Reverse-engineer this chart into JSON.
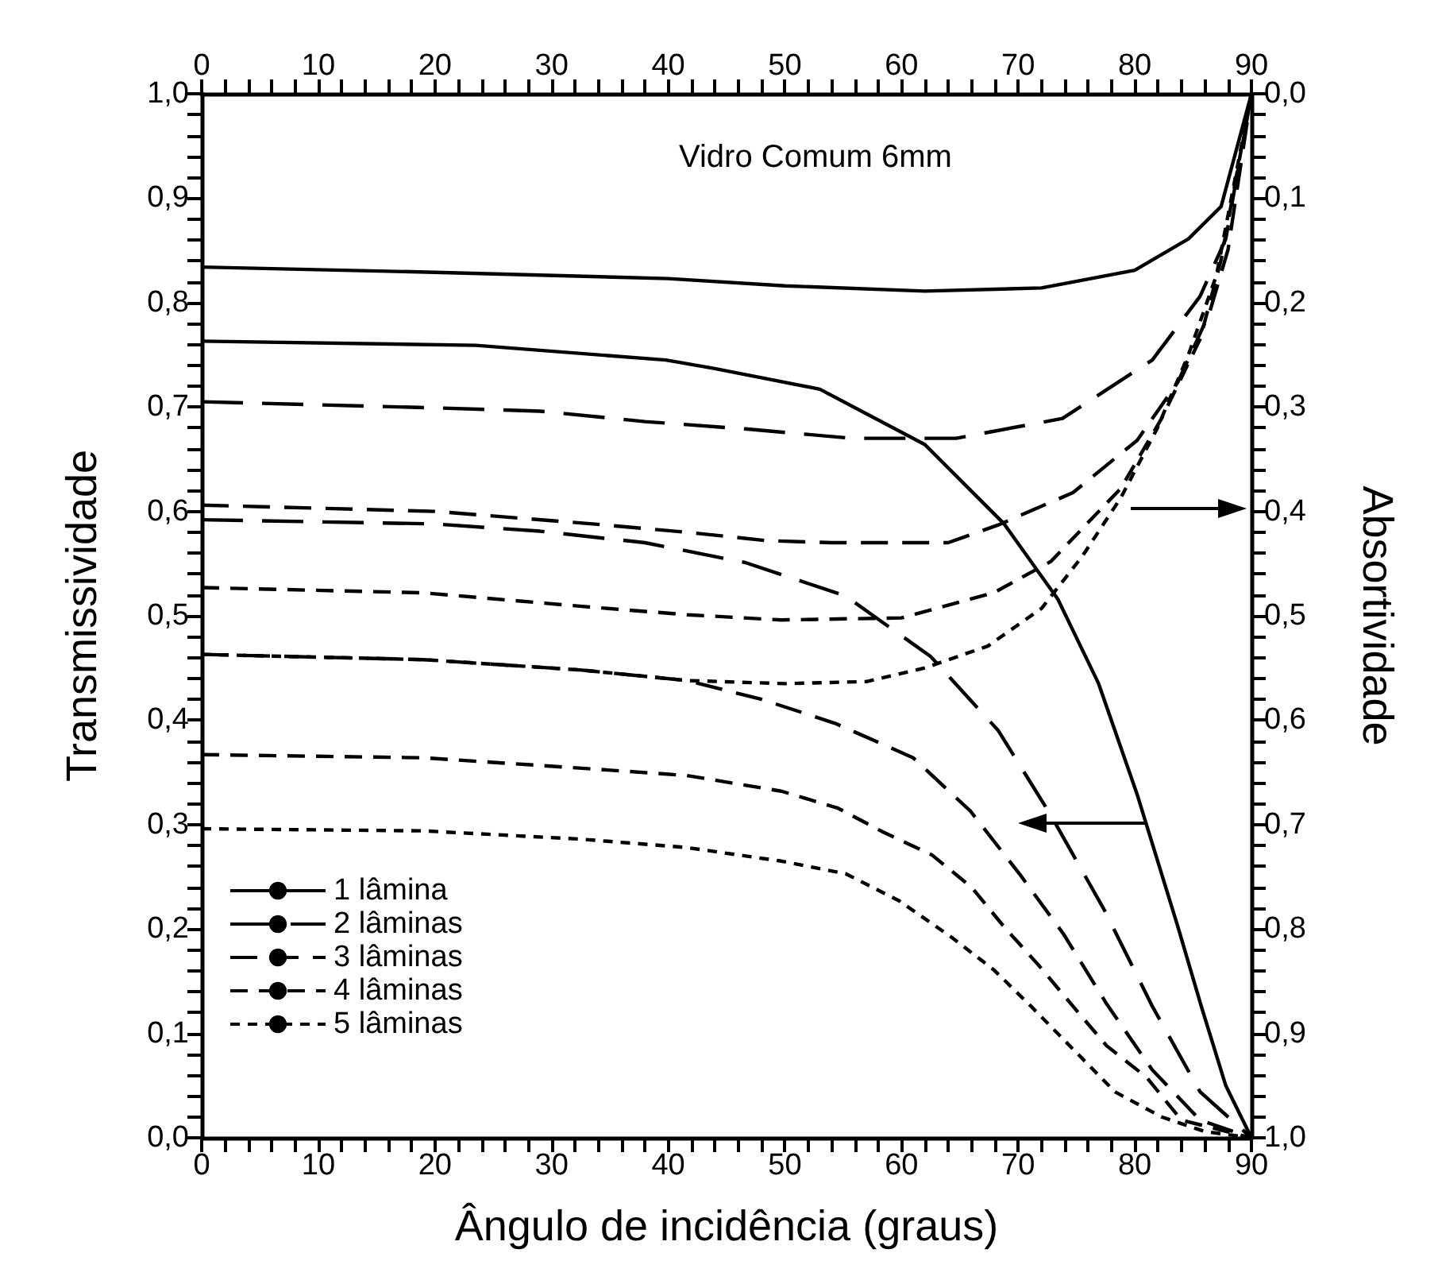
{
  "chart_data": {
    "type": "line",
    "annotations": [
      "Vidro Comum 6mm"
    ],
    "xlabel": "Ângulo de incidência (graus)",
    "ylabel": "Transmissividade",
    "y2label": "Absortividade",
    "series": [
      {
        "name": "1 lâmina",
        "color": "#000000",
        "line_style": "solid",
        "x": [
          0,
          23.5,
          39.8,
          43.9,
          53,
          62,
          68.8,
          73.4,
          76.9,
          80.2,
          83.7,
          85.7,
          87.8,
          90
        ],
        "values": [
          0.763,
          0.759,
          0.745,
          0.737,
          0.717,
          0.664,
          0.588,
          0.516,
          0.435,
          0.329,
          0.202,
          0.126,
          0.05,
          0
        ]
      },
      {
        "color": "#000000",
        "line_style": "solid",
        "axis": "y2",
        "x": [
          0,
          20,
          40,
          50,
          62,
          72,
          80,
          84.6,
          87.4,
          90
        ],
        "values": [
          0.166,
          0.171,
          0.177,
          0.184,
          0.189,
          0.186,
          0.169,
          0.139,
          0.108,
          0
        ]
      },
      {
        "name": "2 lâminas",
        "color": "#000000",
        "line_style": "dashed",
        "x": [
          0,
          20,
          29,
          38,
          46.6,
          55.2,
          62.5,
          68.3,
          72.8,
          77.4,
          81.5,
          85.6,
          90
        ],
        "values": [
          0.592,
          0.588,
          0.581,
          0.57,
          0.551,
          0.519,
          0.461,
          0.39,
          0.309,
          0.218,
          0.126,
          0.044,
          0
        ]
      },
      {
        "color": "#000000",
        "line_style": "dashed",
        "axis": "y2",
        "x": [
          0,
          20.4,
          29,
          38,
          46.6,
          55.7,
          64.7,
          73.8,
          81.5,
          85.6,
          87.8,
          90
        ],
        "values": [
          0.295,
          0.301,
          0.304,
          0.314,
          0.321,
          0.33,
          0.33,
          0.311,
          0.255,
          0.194,
          0.139,
          0
        ]
      },
      {
        "name": "3 lâminas",
        "color": "#000000",
        "line_style": "dashed",
        "x": [
          0,
          19,
          32.6,
          41.6,
          48,
          54.3,
          61,
          65.9,
          70.1,
          73.9,
          77.6,
          81.5,
          85.6,
          90
        ],
        "values": [
          0.463,
          0.458,
          0.448,
          0.438,
          0.42,
          0.397,
          0.364,
          0.313,
          0.253,
          0.195,
          0.128,
          0.065,
          0.017,
          0
        ]
      },
      {
        "color": "#000000",
        "line_style": "dashed",
        "axis": "y2",
        "x": [
          0,
          20,
          33.5,
          41.6,
          48.4,
          54,
          64,
          68.3,
          74.7,
          80.2,
          83.7,
          86.4,
          88,
          90
        ],
        "values": [
          0.394,
          0.4,
          0.412,
          0.42,
          0.428,
          0.43,
          0.43,
          0.413,
          0.382,
          0.332,
          0.276,
          0.21,
          0.149,
          0
        ]
      },
      {
        "name": "4 lâminas",
        "color": "#000000",
        "line_style": "dashed",
        "x": [
          0,
          19,
          32.6,
          41.6,
          49.7,
          54.5,
          58.4,
          62.6,
          66,
          68.8,
          71.7,
          74.7,
          77.6,
          81,
          84,
          90
        ],
        "values": [
          0.367,
          0.364,
          0.354,
          0.347,
          0.332,
          0.316,
          0.293,
          0.271,
          0.24,
          0.202,
          0.166,
          0.126,
          0.088,
          0.058,
          0.017,
          0
        ]
      },
      {
        "color": "#000000",
        "line_style": "dashed",
        "axis": "y2",
        "x": [
          0,
          19,
          32.6,
          41.6,
          49.7,
          60,
          67.9,
          72.8,
          78.8,
          82.3,
          85.6,
          87.4,
          90
        ],
        "values": [
          0.473,
          0.478,
          0.491,
          0.499,
          0.504,
          0.502,
          0.478,
          0.448,
          0.378,
          0.311,
          0.235,
          0.159,
          0
        ]
      },
      {
        "name": "5 lâminas",
        "color": "#000000",
        "line_style": "dashed",
        "x": [
          0,
          19,
          32.6,
          41.6,
          49.7,
          55.2,
          59.8,
          64.3,
          67.9,
          71.1,
          74.7,
          78.3,
          82.3,
          86,
          90
        ],
        "values": [
          0.296,
          0.294,
          0.286,
          0.278,
          0.265,
          0.253,
          0.227,
          0.192,
          0.161,
          0.126,
          0.085,
          0.044,
          0.02,
          0.006,
          0
        ]
      },
      {
        "color": "#000000",
        "line_style": "dashed",
        "axis": "y2",
        "x": [
          0,
          19,
          32.6,
          41.6,
          50,
          57,
          62,
          67.4,
          72,
          75.5,
          78.8,
          81.9,
          84.6,
          87,
          90
        ],
        "values": [
          0.537,
          0.542,
          0.552,
          0.562,
          0.565,
          0.563,
          0.55,
          0.529,
          0.493,
          0.443,
          0.387,
          0.321,
          0.25,
          0.174,
          0
        ]
      }
    ],
    "xlim": [
      0,
      90
    ],
    "xticks": [
      0,
      {
        "value": 2,
        "label": null
      },
      {
        "value": 4,
        "label": null
      },
      {
        "value": 6,
        "label": null
      },
      {
        "value": 8,
        "label": null
      },
      10,
      {
        "value": 12,
        "label": null
      },
      {
        "value": 14,
        "label": null
      },
      {
        "value": 16,
        "label": null
      },
      {
        "value": 18,
        "label": null
      },
      20,
      {
        "value": 22,
        "label": null
      },
      {
        "value": 24,
        "label": null
      },
      {
        "value": 26,
        "label": null
      },
      {
        "value": 28,
        "label": null
      },
      30,
      {
        "value": 32,
        "label": null
      },
      {
        "value": 34,
        "label": null
      },
      {
        "value": 36,
        "label": null
      },
      {
        "value": 38,
        "label": null
      },
      40,
      {
        "value": 42,
        "label": null
      },
      {
        "value": 44,
        "label": null
      },
      {
        "value": 46,
        "label": null
      },
      {
        "value": 48,
        "label": null
      },
      50,
      {
        "value": 52,
        "label": null
      },
      {
        "value": 54,
        "label": null
      },
      {
        "value": 56,
        "label": null
      },
      {
        "value": 58,
        "label": null
      },
      60,
      {
        "value": 62,
        "label": null
      },
      {
        "value": 64,
        "label": null
      },
      {
        "value": 66,
        "label": null
      },
      {
        "value": 68,
        "label": null
      },
      70,
      {
        "value": 72,
        "label": null
      },
      {
        "value": 74,
        "label": null
      },
      {
        "value": 76,
        "label": null
      },
      {
        "value": 78,
        "label": null
      },
      80,
      {
        "value": 82,
        "label": null
      },
      {
        "value": 84,
        "label": null
      },
      {
        "value": 86,
        "label": null
      },
      {
        "value": 88,
        "label": null
      },
      90
    ],
    "x2lim": [
      0,
      90
    ],
    "x2ticks": [
      0,
      {
        "value": 2,
        "label": null
      },
      {
        "value": 4,
        "label": null
      },
      {
        "value": 6,
        "label": null
      },
      {
        "value": 8,
        "label": null
      },
      10,
      {
        "value": 12,
        "label": null
      },
      {
        "value": 14,
        "label": null
      },
      {
        "value": 16,
        "label": null
      },
      {
        "value": 18,
        "label": null
      },
      20,
      {
        "value": 22,
        "label": null
      },
      {
        "value": 24,
        "label": null
      },
      {
        "value": 26,
        "label": null
      },
      {
        "value": 28,
        "label": null
      },
      30,
      {
        "value": 32,
        "label": null
      },
      {
        "value": 34,
        "label": null
      },
      {
        "value": 36,
        "label": null
      },
      {
        "value": 38,
        "label": null
      },
      40,
      {
        "value": 42,
        "label": null
      },
      {
        "value": 44,
        "label": null
      },
      {
        "value": 46,
        "label": null
      },
      {
        "value": 48,
        "label": null
      },
      50,
      {
        "value": 52,
        "label": null
      },
      {
        "value": 54,
        "label": null
      },
      {
        "value": 56,
        "label": null
      },
      {
        "value": 58,
        "label": null
      },
      60,
      {
        "value": 62,
        "label": null
      },
      {
        "value": 64,
        "label": null
      },
      {
        "value": 66,
        "label": null
      },
      {
        "value": 68,
        "label": null
      },
      70,
      {
        "value": 72,
        "label": null
      },
      {
        "value": 74,
        "label": null
      },
      {
        "value": 76,
        "label": null
      },
      {
        "value": 78,
        "label": null
      },
      80,
      {
        "value": 82,
        "label": null
      },
      {
        "value": 84,
        "label": null
      },
      {
        "value": 86,
        "label": null
      },
      {
        "value": 88,
        "label": null
      },
      90
    ],
    "ylim": [
      0,
      1
    ],
    "yticks": [
      {
        "value": 0,
        "label": "0,0"
      },
      {
        "value": 0.02,
        "label": null
      },
      {
        "value": 0.04,
        "label": null
      },
      {
        "value": 0.06,
        "label": null
      },
      {
        "value": 0.08,
        "label": null
      },
      {
        "value": 0.1,
        "label": "0,1"
      },
      {
        "value": 0.12,
        "label": null
      },
      {
        "value": 0.14,
        "label": null
      },
      {
        "value": 0.16,
        "label": null
      },
      {
        "value": 0.18,
        "label": null
      },
      {
        "value": 0.2,
        "label": "0,2"
      },
      {
        "value": 0.22,
        "label": null
      },
      {
        "value": 0.24,
        "label": null
      },
      {
        "value": 0.26,
        "label": null
      },
      {
        "value": 0.28,
        "label": null
      },
      {
        "value": 0.3,
        "label": "0,3"
      },
      {
        "value": 0.32,
        "label": null
      },
      {
        "value": 0.34,
        "label": null
      },
      {
        "value": 0.36,
        "label": null
      },
      {
        "value": 0.38,
        "label": null
      },
      {
        "value": 0.4,
        "label": "0,4"
      },
      {
        "value": 0.42,
        "label": null
      },
      {
        "value": 0.44,
        "label": null
      },
      {
        "value": 0.46,
        "label": null
      },
      {
        "value": 0.48,
        "label": null
      },
      {
        "value": 0.5,
        "label": "0,5"
      },
      {
        "value": 0.52,
        "label": null
      },
      {
        "value": 0.54,
        "label": null
      },
      {
        "value": 0.56,
        "label": null
      },
      {
        "value": 0.58,
        "label": null
      },
      {
        "value": 0.6,
        "label": "0,6"
      },
      {
        "value": 0.62,
        "label": null
      },
      {
        "value": 0.64,
        "label": null
      },
      {
        "value": 0.66,
        "label": null
      },
      {
        "value": 0.68,
        "label": null
      },
      {
        "value": 0.7,
        "label": "0,7"
      },
      {
        "value": 0.72,
        "label": null
      },
      {
        "value": 0.74,
        "label": null
      },
      {
        "value": 0.76,
        "label": null
      },
      {
        "value": 0.78,
        "label": null
      },
      {
        "value": 0.8,
        "label": "0,8"
      },
      {
        "value": 0.82,
        "label": null
      },
      {
        "value": 0.84,
        "label": null
      },
      {
        "value": 0.86,
        "label": null
      },
      {
        "value": 0.88,
        "label": null
      },
      {
        "value": 0.9,
        "label": "0,9"
      },
      {
        "value": 0.92,
        "label": null
      },
      {
        "value": 0.94,
        "label": null
      },
      {
        "value": 0.96,
        "label": null
      },
      {
        "value": 0.98,
        "label": null
      },
      {
        "value": 1,
        "label": "1,0"
      }
    ],
    "y2lim": [
      1,
      0
    ],
    "y2ticks": [
      {
        "value": 0,
        "label": "0,0"
      },
      {
        "value": 0.02,
        "label": null
      },
      {
        "value": 0.04,
        "label": null
      },
      {
        "value": 0.06,
        "label": null
      },
      {
        "value": 0.08,
        "label": null
      },
      {
        "value": 0.1,
        "label": "0,1"
      },
      {
        "value": 0.12,
        "label": null
      },
      {
        "value": 0.14,
        "label": null
      },
      {
        "value": 0.16,
        "label": null
      },
      {
        "value": 0.18,
        "label": null
      },
      {
        "value": 0.2,
        "label": "0,2"
      },
      {
        "value": 0.22,
        "label": null
      },
      {
        "value": 0.24,
        "label": null
      },
      {
        "value": 0.26,
        "label": null
      },
      {
        "value": 0.28,
        "label": null
      },
      {
        "value": 0.3,
        "label": "0,3"
      },
      {
        "value": 0.32,
        "label": null
      },
      {
        "value": 0.34,
        "label": null
      },
      {
        "value": 0.36,
        "label": null
      },
      {
        "value": 0.38,
        "label": null
      },
      {
        "value": 0.4,
        "label": "0,4"
      },
      {
        "value": 0.42,
        "label": null
      },
      {
        "value": 0.44,
        "label": null
      },
      {
        "value": 0.46,
        "label": null
      },
      {
        "value": 0.48,
        "label": null
      },
      {
        "value": 0.5,
        "label": "0,5"
      },
      {
        "value": 0.52,
        "label": null
      },
      {
        "value": 0.54,
        "label": null
      },
      {
        "value": 0.56,
        "label": null
      },
      {
        "value": 0.58,
        "label": null
      },
      {
        "value": 0.6,
        "label": "0,6"
      },
      {
        "value": 0.62,
        "label": null
      },
      {
        "value": 0.64,
        "label": null
      },
      {
        "value": 0.66,
        "label": null
      },
      {
        "value": 0.68,
        "label": null
      },
      {
        "value": 0.7,
        "label": "0,7"
      },
      {
        "value": 0.72,
        "label": null
      },
      {
        "value": 0.74,
        "label": null
      },
      {
        "value": 0.76,
        "label": null
      },
      {
        "value": 0.78,
        "label": null
      },
      {
        "value": 0.8,
        "label": "0,8"
      },
      {
        "value": 0.82,
        "label": null
      },
      {
        "value": 0.84,
        "label": null
      },
      {
        "value": 0.86,
        "label": null
      },
      {
        "value": 0.88,
        "label": null
      },
      {
        "value": 0.9,
        "label": "0,9"
      },
      {
        "value": 0.92,
        "label": null
      },
      {
        "value": 0.94,
        "label": null
      },
      {
        "value": 0.96,
        "label": null
      },
      {
        "value": 0.98,
        "label": null
      },
      {
        "value": 1,
        "label": "1,0"
      }
    ],
    "grid": false,
    "legend": "bottom left",
    "marker": "none"
  }
}
